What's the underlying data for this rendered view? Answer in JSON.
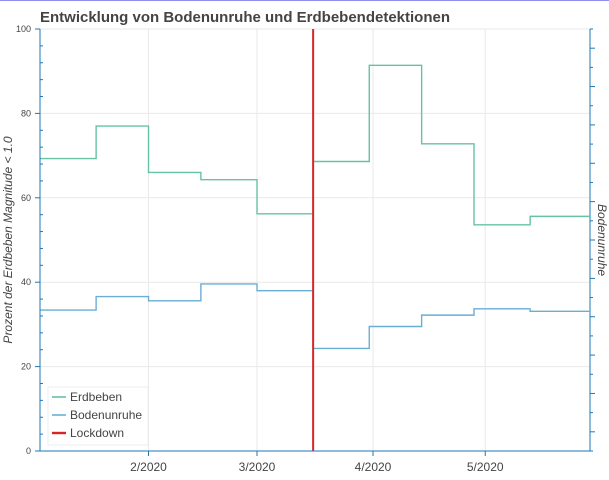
{
  "chart_data": {
    "type": "line",
    "title": "Entwicklung von Bodenunruhe und Erdbebendetektionen",
    "ylabel": "Prozent der Erdbeben Magnitude < 1.0",
    "y2label": "Bodenunruhe",
    "ylim": [
      0,
      100
    ],
    "yticks": [
      0,
      20,
      40,
      60,
      80,
      100
    ],
    "xlim": [
      "2020-01-03",
      "2020-05-29"
    ],
    "xticks": [
      {
        "date": "2020-02-01",
        "label": "2/2020"
      },
      {
        "date": "2020-03-01",
        "label": "3/2020"
      },
      {
        "date": "2020-04-01",
        "label": "4/2020"
      },
      {
        "date": "2020-05-01",
        "label": "5/2020"
      }
    ],
    "grid": true,
    "legend_position": "bottom-left",
    "series": [
      {
        "name": "Erdbeben",
        "color": "#66c2a5",
        "step": true,
        "points": [
          [
            "2020-01-03",
            69.3
          ],
          [
            "2020-01-18",
            77.0
          ],
          [
            "2020-02-01",
            66.0
          ],
          [
            "2020-02-15",
            64.3
          ],
          [
            "2020-03-01",
            56.2
          ],
          [
            "2020-03-16",
            68.6
          ],
          [
            "2020-03-31",
            91.4
          ],
          [
            "2020-04-14",
            72.8
          ],
          [
            "2020-04-28",
            53.6
          ],
          [
            "2020-05-13",
            55.6
          ],
          [
            "2020-05-29",
            55.6
          ]
        ]
      },
      {
        "name": "Bodenunruhe",
        "color": "#6aaed6",
        "step": true,
        "points": [
          [
            "2020-01-03",
            33.4
          ],
          [
            "2020-01-18",
            36.6
          ],
          [
            "2020-02-01",
            35.6
          ],
          [
            "2020-02-15",
            39.6
          ],
          [
            "2020-03-01",
            38.0
          ],
          [
            "2020-03-16",
            24.3
          ],
          [
            "2020-03-31",
            29.5
          ],
          [
            "2020-04-14",
            32.2
          ],
          [
            "2020-04-28",
            33.7
          ],
          [
            "2020-05-13",
            33.1
          ],
          [
            "2020-05-29",
            33.1
          ]
        ]
      }
    ],
    "events": [
      {
        "name": "Lockdown",
        "date": "2020-03-16",
        "color": "#d62728"
      }
    ],
    "grid_color": "#e9e9e9",
    "axis_color": "#1f77b4"
  }
}
